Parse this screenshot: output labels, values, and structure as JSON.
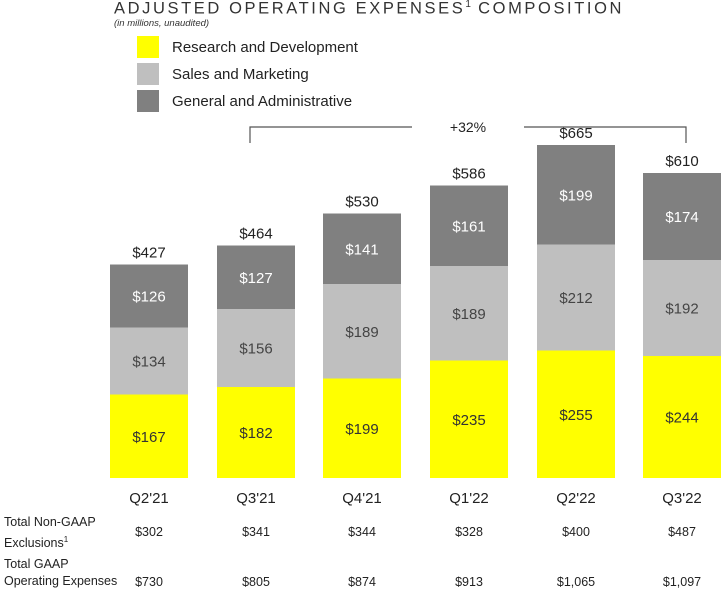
{
  "title": {
    "main": "ADJUSTED OPERATING EXPENSES",
    "sup": "1",
    "tail": " COMPOSITION"
  },
  "subtitle": "(in millions, unaudited)",
  "colors": {
    "rd": "#ffff00",
    "sm": "#bfbfbf",
    "ga": "#808080",
    "bracket": "#555555"
  },
  "chart_data": {
    "type": "bar",
    "stacked": true,
    "title": "ADJUSTED OPERATING EXPENSES COMPOSITION",
    "subtitle": "(in millions, unaudited)",
    "unit": "$M",
    "categories": [
      "Q2'21",
      "Q3'21",
      "Q4'21",
      "Q1'22",
      "Q2'22",
      "Q3'22"
    ],
    "series": [
      {
        "name": "Research and Development",
        "key": "rd",
        "values": [
          167,
          182,
          199,
          235,
          255,
          244
        ],
        "labels": [
          "$167",
          "$182",
          "$199",
          "$235",
          "$255",
          "$244"
        ]
      },
      {
        "name": "Sales and Marketing",
        "key": "sm",
        "values": [
          134,
          156,
          189,
          189,
          212,
          192
        ],
        "labels": [
          "$134",
          "$156",
          "$189",
          "$189",
          "$212",
          "$192"
        ]
      },
      {
        "name": "General and Administrative",
        "key": "ga",
        "values": [
          126,
          127,
          141,
          161,
          199,
          174
        ],
        "labels": [
          "$126",
          "$127",
          "$141",
          "$161",
          "$199",
          "$174"
        ]
      }
    ],
    "totals": [
      427,
      464,
      530,
      586,
      665,
      610
    ],
    "total_labels": [
      "$427",
      "$464",
      "$530",
      "$586",
      "$665",
      "$610"
    ],
    "growth_annotation": {
      "text": "+32%",
      "from": "Q3'21",
      "to": "Q3'22"
    },
    "legend_position": "top-left"
  },
  "table": {
    "rows": [
      {
        "label_line1": "Total Non-GAAP",
        "label_line2": "Exclusions",
        "label_sup": "1",
        "values": [
          "$302",
          "$341",
          "$344",
          "$328",
          "$400",
          "$487"
        ]
      },
      {
        "label_line1": "Total GAAP",
        "label_line2": "Operating Expenses",
        "label_sup": "",
        "values": [
          "$730",
          "$805",
          "$874",
          "$913",
          "$1,065",
          "$1,097"
        ]
      }
    ]
  }
}
